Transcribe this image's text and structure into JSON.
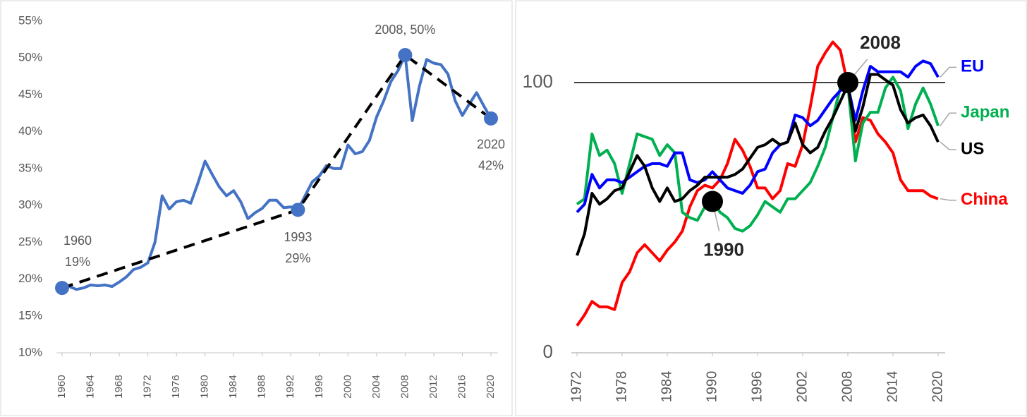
{
  "chart_data": [
    {
      "type": "line",
      "x": [
        1960,
        1961,
        1962,
        1963,
        1964,
        1965,
        1966,
        1967,
        1968,
        1969,
        1970,
        1971,
        1972,
        1973,
        1974,
        1975,
        1976,
        1977,
        1978,
        1979,
        1980,
        1981,
        1982,
        1983,
        1984,
        1985,
        1986,
        1987,
        1988,
        1989,
        1990,
        1991,
        1992,
        1993,
        1994,
        1995,
        1996,
        1997,
        1998,
        1999,
        2000,
        2001,
        2002,
        2003,
        2004,
        2005,
        2006,
        2007,
        2008,
        2009,
        2010,
        2011,
        2012,
        2013,
        2014,
        2015,
        2016,
        2017,
        2018,
        2019,
        2020
      ],
      "series": [
        {
          "color": "#4472c4",
          "values": [
            18.8,
            19.0,
            18.6,
            18.8,
            19.2,
            19.1,
            19.2,
            19.0,
            19.6,
            20.3,
            21.3,
            21.6,
            22.2,
            25.0,
            31.3,
            29.5,
            30.5,
            30.7,
            30.3,
            33.0,
            36.0,
            34.2,
            32.5,
            31.3,
            32.0,
            30.5,
            28.2,
            29.0,
            29.6,
            30.7,
            30.7,
            29.7,
            29.8,
            29.4,
            31.3,
            33.2,
            34.0,
            35.4,
            35.0,
            35.0,
            38.2,
            37.0,
            37.3,
            38.8,
            42.0,
            44.2,
            46.8,
            48.3,
            50.4,
            41.5,
            46.2,
            49.8,
            49.3,
            49.1,
            47.8,
            44.2,
            42.2,
            43.8,
            45.3,
            43.5,
            41.8
          ]
        }
      ],
      "trend": {
        "color": "#000000",
        "x": [
          1960,
          1993,
          2008,
          2020
        ],
        "values": [
          18.8,
          29.4,
          50.4,
          41.8
        ],
        "annotations": [
          [
            "1960",
            "19%"
          ],
          [
            "1993",
            "29%"
          ],
          [
            "2008, 50%"
          ],
          [
            "2020",
            "42%"
          ]
        ]
      },
      "xlim": [
        1960,
        2020
      ],
      "xticks": [
        1960,
        1964,
        1968,
        1972,
        1976,
        1980,
        1984,
        1988,
        1992,
        1996,
        2000,
        2004,
        2008,
        2012,
        2016,
        2020
      ],
      "ylim": [
        10,
        55
      ],
      "yticks": [
        {
          "value": 10,
          "label": "10%"
        },
        {
          "value": 15,
          "label": "15%"
        },
        {
          "value": 20,
          "label": "20%"
        },
        {
          "value": 25,
          "label": "25%"
        },
        {
          "value": 30,
          "label": "30%"
        },
        {
          "value": 35,
          "label": "35%"
        },
        {
          "value": 40,
          "label": "40%"
        },
        {
          "value": 45,
          "label": "45%"
        },
        {
          "value": 50,
          "label": "50%"
        },
        {
          "value": 55,
          "label": "55%"
        }
      ]
    },
    {
      "type": "line",
      "x": [
        1972,
        1973,
        1974,
        1975,
        1976,
        1977,
        1978,
        1979,
        1980,
        1981,
        1982,
        1983,
        1984,
        1985,
        1986,
        1987,
        1988,
        1989,
        1990,
        1991,
        1992,
        1993,
        1994,
        1995,
        1996,
        1997,
        1998,
        1999,
        2000,
        2001,
        2002,
        2003,
        2004,
        2005,
        2006,
        2007,
        2008,
        2009,
        2010,
        2011,
        2012,
        2013,
        2014,
        2015,
        2016,
        2017,
        2018,
        2019,
        2020
      ],
      "series": [
        {
          "name": "China",
          "color": "#ff0000",
          "values": [
            10,
            14,
            19,
            17,
            17,
            16,
            26,
            30,
            37,
            40,
            37,
            34,
            38,
            41,
            45,
            54,
            60,
            62,
            61,
            64,
            70,
            79,
            75,
            69,
            61,
            61,
            57,
            60,
            70,
            69,
            77,
            91,
            106,
            111,
            115,
            112,
            99,
            78,
            87,
            86,
            81,
            78,
            74,
            64,
            60,
            60,
            60,
            58,
            57
          ]
        },
        {
          "name": "Japan",
          "color": "#00b050",
          "values": [
            55,
            57,
            81,
            73,
            75,
            70,
            59,
            70,
            81,
            80,
            79,
            73,
            77,
            74,
            52,
            50,
            49,
            54,
            57,
            52,
            50,
            46,
            45,
            47,
            51,
            56,
            54,
            52,
            57,
            57,
            60,
            63,
            69,
            76,
            87,
            98,
            99,
            71,
            85,
            89,
            89,
            98,
            102,
            97,
            83,
            92,
            98,
            92,
            84
          ]
        },
        {
          "name": "EU",
          "color": "#0000ff",
          "values": [
            52,
            55,
            66,
            61,
            64,
            64,
            63,
            65,
            67,
            69,
            70,
            70,
            69,
            74,
            74,
            64,
            63,
            64,
            67,
            64,
            61,
            60,
            59,
            62,
            67,
            68,
            74,
            77,
            78,
            88,
            87,
            84,
            86,
            90,
            94,
            97,
            99,
            86,
            97,
            106,
            104,
            104,
            104,
            104,
            102,
            106,
            108,
            107,
            102
          ]
        },
        {
          "name": "US",
          "color": "#000000",
          "values": [
            36,
            44,
            59,
            55,
            57,
            60,
            61,
            67,
            73,
            69,
            61,
            56,
            61,
            56,
            57,
            60,
            62,
            65,
            65,
            65,
            65,
            66,
            68,
            72,
            76,
            77,
            79,
            77,
            78,
            85,
            77,
            74,
            76,
            82,
            87,
            93,
            99,
            82,
            91,
            103,
            103,
            101,
            99,
            90,
            85,
            87,
            88,
            84,
            78
          ]
        }
      ],
      "legend": "line-end",
      "reference_line": 100,
      "markers": {
        "x": [
          1990,
          2008
        ],
        "values": [
          56,
          100
        ],
        "labels": [
          "1990",
          "2008"
        ]
      },
      "xlim": [
        1972,
        2020
      ],
      "xticks": [
        1972,
        1978,
        1984,
        1990,
        1996,
        2002,
        2008,
        2014,
        2020
      ],
      "ylim": [
        0,
        120
      ],
      "yticks": [
        0,
        100
      ]
    }
  ]
}
